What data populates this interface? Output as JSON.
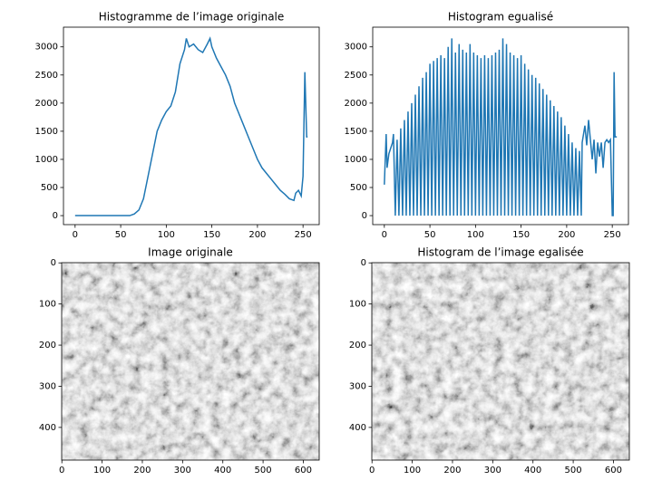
{
  "chart_data": [
    {
      "type": "line",
      "title": "Histogramme de l’image originale",
      "color": "#1f77b4",
      "x": [
        0,
        10,
        20,
        30,
        40,
        50,
        60,
        65,
        70,
        75,
        80,
        85,
        90,
        95,
        100,
        105,
        110,
        115,
        120,
        122,
        125,
        130,
        135,
        140,
        145,
        148,
        150,
        155,
        160,
        165,
        170,
        175,
        180,
        185,
        190,
        195,
        200,
        205,
        210,
        215,
        220,
        225,
        230,
        235,
        240,
        242,
        245,
        248,
        250,
        252,
        254,
        255
      ],
      "values": [
        0,
        0,
        0,
        0,
        0,
        0,
        0,
        30,
        100,
        300,
        700,
        1100,
        1500,
        1700,
        1850,
        1950,
        2200,
        2700,
        2950,
        3150,
        3000,
        3050,
        2950,
        2900,
        3050,
        3150,
        3000,
        2800,
        2650,
        2500,
        2300,
        2000,
        1800,
        1600,
        1400,
        1200,
        1000,
        850,
        750,
        650,
        550,
        450,
        380,
        300,
        270,
        400,
        450,
        350,
        700,
        2550,
        1400,
        1400
      ],
      "xlim": [
        -12.75,
        267.75
      ],
      "xticks": [
        0,
        50,
        100,
        150,
        200,
        250
      ],
      "ylim": [
        -160,
        3350
      ],
      "yticks": [
        0,
        500,
        1000,
        1500,
        2000,
        2500,
        3000
      ]
    },
    {
      "type": "line",
      "title": "Histogram egualisé",
      "color": "#1f77b4",
      "x": [
        0,
        2,
        3,
        5,
        7,
        9,
        10,
        12,
        14,
        16,
        18,
        20,
        22,
        24,
        26,
        28,
        30,
        32,
        34,
        36,
        38,
        40,
        42,
        44,
        46,
        48,
        50,
        52,
        54,
        56,
        58,
        60,
        62,
        64,
        66,
        68,
        70,
        72,
        74,
        76,
        78,
        80,
        82,
        84,
        86,
        88,
        90,
        92,
        94,
        96,
        98,
        100,
        102,
        104,
        106,
        108,
        110,
        112,
        114,
        116,
        118,
        120,
        122,
        124,
        126,
        128,
        130,
        132,
        134,
        136,
        138,
        140,
        142,
        144,
        146,
        148,
        150,
        152,
        154,
        156,
        158,
        160,
        162,
        164,
        166,
        168,
        170,
        172,
        174,
        176,
        178,
        180,
        182,
        184,
        186,
        188,
        190,
        192,
        194,
        196,
        198,
        200,
        202,
        204,
        206,
        208,
        210,
        212,
        214,
        216,
        217,
        220,
        222,
        224,
        226,
        228,
        230,
        232,
        234,
        236,
        238,
        240,
        242,
        244,
        246,
        248,
        250,
        251,
        252,
        253,
        255
      ],
      "values": [
        550,
        1450,
        850,
        1100,
        1200,
        1300,
        1450,
        0,
        1350,
        0,
        1550,
        0,
        1700,
        0,
        1850,
        0,
        2000,
        0,
        2150,
        0,
        2300,
        0,
        2450,
        0,
        2550,
        0,
        2700,
        0,
        2750,
        0,
        2800,
        0,
        2850,
        0,
        2800,
        0,
        3000,
        0,
        3150,
        0,
        2900,
        0,
        3050,
        0,
        2950,
        0,
        2900,
        0,
        3050,
        0,
        2900,
        0,
        2850,
        0,
        2800,
        0,
        2850,
        0,
        2800,
        0,
        2850,
        0,
        2900,
        0,
        2950,
        0,
        3150,
        0,
        3050,
        0,
        2900,
        0,
        2850,
        0,
        2800,
        0,
        2850,
        0,
        2700,
        0,
        2600,
        0,
        2500,
        0,
        2450,
        0,
        2350,
        0,
        2250,
        0,
        2150,
        0,
        2050,
        0,
        1950,
        0,
        1850,
        0,
        1750,
        0,
        1600,
        0,
        1450,
        0,
        1300,
        0,
        1200,
        0,
        1150,
        0,
        1300,
        1600,
        1250,
        1700,
        1350,
        1000,
        1350,
        750,
        1300,
        1050,
        1300,
        850,
        1300,
        1350,
        1300,
        1350,
        0,
        0,
        2550,
        1400,
        1400
      ],
      "xlim": [
        -12.75,
        267.75
      ],
      "xticks": [
        0,
        50,
        100,
        150,
        200,
        250
      ],
      "ylim": [
        -160,
        3350
      ],
      "yticks": [
        0,
        500,
        1000,
        1500,
        2000,
        2500,
        3000
      ]
    },
    {
      "type": "image",
      "title": "Image originale",
      "xlim": [
        -0.5,
        639.5
      ],
      "xticks": [
        0,
        100,
        200,
        300,
        400,
        500,
        600
      ],
      "ylim": [
        479.5,
        -0.5
      ],
      "yticks": [
        0,
        100,
        200,
        300,
        400
      ]
    },
    {
      "type": "image",
      "title": "Histogram de l’image egalisée",
      "xlim": [
        -0.5,
        639.5
      ],
      "xticks": [
        0,
        100,
        200,
        300,
        400,
        500,
        600
      ],
      "ylim": [
        479.5,
        -0.5
      ],
      "yticks": [
        0,
        100,
        200,
        300,
        400
      ]
    }
  ]
}
